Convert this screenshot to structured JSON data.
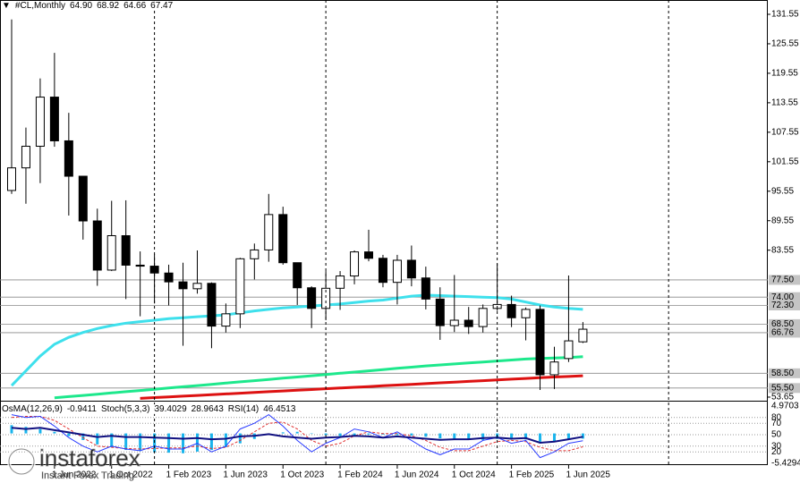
{
  "chart_data": {
    "type": "candlestick",
    "symbol": "#CL,Monthly",
    "ohlc_labels": [
      "64.90",
      "68.92",
      "64.66",
      "67.47"
    ],
    "categories": [
      null,
      null,
      null,
      "1 Jun 2022",
      null,
      null,
      null,
      "1 Oct 2022",
      null,
      null,
      null,
      "1 Feb 2023",
      null,
      null,
      null,
      "1 Jun 2023",
      null,
      null,
      null,
      "1 Oct 2023",
      null,
      null,
      null,
      "1 Feb 2024",
      null,
      null,
      null,
      "1 Jun 2024",
      null,
      null,
      null,
      "1 Oct 2024",
      null,
      null,
      null,
      "1 Feb 2025",
      null,
      null,
      null,
      "1 Jun 2025",
      null
    ],
    "open": [
      95.7,
      100.3,
      104.7,
      114.7,
      105.8,
      98.6,
      89.5,
      79.5,
      86.5,
      80.5,
      80.3,
      78.9,
      77.1,
      75.7,
      76.8,
      68.1,
      70.6,
      81.8,
      83.6,
      90.8,
      81,
      75.9,
      71.7,
      75.8,
      78.3,
      83.2,
      81.9,
      77,
      81.5,
      77.9,
      73.6,
      68.2,
      69.3,
      68,
      71.7,
      72.5,
      69.8,
      71.5,
      58.2,
      61.5,
      64.9
    ],
    "high": [
      130.5,
      108.5,
      118.5,
      123.7,
      111.5,
      98.6,
      92,
      93.6,
      93.7,
      83.3,
      82.7,
      80.6,
      81,
      83.5,
      77,
      72.7,
      82,
      84.9,
      95,
      92.4,
      80.9,
      76.2,
      79.3,
      79.3,
      83.5,
      87.7,
      82.6,
      82.6,
      84.5,
      80.2,
      76,
      78.5,
      72,
      72.5,
      80.8,
      74.3,
      71.9,
      72.3,
      63.9,
      78.4,
      68.92
    ],
    "low": [
      95,
      93,
      97.2,
      104.6,
      90.6,
      85.7,
      76.3,
      79.3,
      73.6,
      70.1,
      72.7,
      72.3,
      64.1,
      74.7,
      63.6,
      66.8,
      67.7,
      77.6,
      81.2,
      80.6,
      72.4,
      67.7,
      69.3,
      71.4,
      76.6,
      81.3,
      76,
      72.5,
      76.2,
      71.5,
      65.3,
      66.9,
      66.5,
      66.8,
      71.2,
      67.9,
      65.2,
      55.1,
      55.3,
      60.8,
      64.66
    ],
    "close": [
      100.3,
      104.7,
      114.7,
      105.8,
      98.6,
      89.5,
      79.5,
      86.5,
      80.5,
      80.3,
      78.9,
      77.1,
      75.7,
      76.8,
      68.1,
      70.6,
      81.8,
      83.6,
      90.8,
      81,
      75.9,
      71.7,
      75.8,
      78.3,
      83.2,
      81.9,
      77,
      81.5,
      77.9,
      73.6,
      68.2,
      69.3,
      68,
      71.7,
      72.5,
      69.8,
      71.5,
      58.2,
      60.8,
      65.1,
      67.47
    ],
    "ylim": [
      53.1,
      134.46
    ],
    "yticks": [
      131.55,
      125.55,
      119.55,
      113.55,
      107.55,
      101.55,
      95.55,
      89.55,
      83.55,
      53.65
    ],
    "levels": [
      {
        "value": 77.5,
        "label": "77.50"
      },
      {
        "value": 74,
        "label": "74.00"
      },
      {
        "value": 72.3,
        "label": "72.30"
      },
      {
        "value": 68.5,
        "label": "68.50"
      },
      66.76,
      {
        "value": 58.5,
        "label": "58.50"
      },
      {
        "value": 55.5,
        "label": "55.50"
      }
    ],
    "moving_averages": [
      {
        "color": "#3ee0ec",
        "values": [
          56,
          59,
          62,
          64.4,
          65.8,
          66.8,
          67.6,
          68.2,
          68.7,
          69.0,
          69.3,
          69.6,
          69.8,
          70.0,
          70.2,
          70.4,
          70.8,
          71.2,
          71.5,
          71.8,
          72.0,
          72.2,
          72.4,
          72.6,
          72.9,
          73.2,
          73.4,
          73.8,
          74.2,
          74.4,
          74.3,
          74.2,
          74.1,
          74.0,
          73.9,
          73.6,
          73.0,
          72.4,
          72.0,
          71.7,
          71.5
        ]
      },
      {
        "color": "#1de88c",
        "values": [
          null,
          null,
          null,
          53.5,
          53.75,
          54.0,
          54.25,
          54.5,
          54.75,
          55.0,
          55.25,
          55.5,
          55.75,
          56.0,
          56.25,
          56.5,
          56.75,
          57.0,
          57.25,
          57.5,
          57.75,
          58.0,
          58.25,
          58.5,
          58.75,
          59.0,
          59.25,
          59.5,
          59.75,
          60.0,
          60.2,
          60.4,
          60.6,
          60.8,
          61.0,
          61.2,
          61.4,
          61.5,
          61.6,
          61.7,
          61.9
        ]
      },
      {
        "color": "#dd1111",
        "values": [
          null,
          null,
          null,
          null,
          null,
          null,
          null,
          null,
          null,
          53.4,
          53.55,
          53.7,
          53.85,
          54.0,
          54.15,
          54.3,
          54.45,
          54.6,
          54.75,
          54.9,
          55.05,
          55.2,
          55.35,
          55.5,
          55.65,
          55.8,
          55.95,
          56.1,
          56.25,
          56.4,
          56.55,
          56.7,
          56.85,
          57.0,
          57.15,
          57.3,
          57.45,
          57.6,
          57.75,
          57.85,
          58.0
        ]
      }
    ],
    "oscillator": {
      "osma_name": "OsMA(12,26,9)",
      "osma_color": "#1ab4ec",
      "osma_lim": [
        -5.4294,
        4.9703
      ],
      "osma": [
        1.5,
        1.2,
        0.8,
        0.3,
        -0.5,
        -1.2,
        -2,
        -2.5,
        -3,
        -3.2,
        -3.4,
        -3.5,
        -3.6,
        -3.3,
        -3,
        -2.5,
        -1.8,
        -1,
        -0.3,
        0.2,
        0.3,
        0,
        -0.3,
        -0.5,
        -0.4,
        -0.2,
        -0.2,
        -0.3,
        -0.4,
        -0.6,
        -0.9,
        -1.1,
        -1.2,
        -1.2,
        -1.0,
        -1.0,
        -1.1,
        -1.5,
        -1.4,
        -1.1,
        -0.9411
      ],
      "stoch_name": "Stoch(5,3,3)",
      "stoch_color": "#2a3cff",
      "stoch_main": [
        85,
        80,
        82,
        65,
        45,
        30,
        20,
        30,
        25,
        22,
        30,
        25,
        25,
        35,
        20,
        30,
        60,
        70,
        85,
        65,
        40,
        20,
        35,
        45,
        60,
        55,
        45,
        55,
        40,
        25,
        15,
        25,
        25,
        40,
        45,
        35,
        40,
        10,
        20,
        35,
        39.4029
      ],
      "signal_color": "#e03030",
      "stoch_signal": [
        80,
        82,
        82,
        75,
        60,
        45,
        30,
        28,
        26,
        25,
        26,
        27,
        27,
        30,
        26,
        28,
        40,
        55,
        70,
        72,
        60,
        40,
        30,
        35,
        48,
        55,
        52,
        52,
        48,
        40,
        28,
        22,
        22,
        30,
        38,
        40,
        38,
        28,
        22,
        22,
        28.9643
      ],
      "rsi_name": "RSI(14)",
      "rsi_color": "#101080",
      "rsi": [
        62,
        60,
        62,
        58,
        54,
        50,
        46,
        48,
        46,
        46,
        45,
        44,
        43,
        44,
        42,
        43,
        47,
        48,
        51,
        47,
        45,
        43,
        45,
        46,
        48,
        47,
        45,
        47,
        45,
        43,
        41,
        42,
        42,
        44,
        45,
        43,
        44,
        36,
        38,
        42,
        46.4513
      ],
      "ylim": [
        0,
        100
      ],
      "yticks": [
        80,
        70,
        50,
        30,
        20
      ]
    },
    "watermark": {
      "brand": "instaforex",
      "tagline": "Instant Forex Trading"
    }
  }
}
